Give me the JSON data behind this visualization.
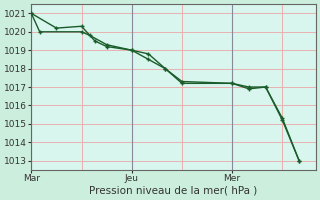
{
  "xlabel": "Pression niveau de la mer( hPa )",
  "bg_color": "#cceedd",
  "plot_bg_color": "#d8f5ee",
  "grid_color": "#e8b0b0",
  "line_color": "#1a5c2a",
  "yticks": [
    1013,
    1014,
    1015,
    1016,
    1017,
    1018,
    1019,
    1020,
    1021
  ],
  "ylim": [
    1012.5,
    1021.5
  ],
  "xtick_labels": [
    "Mar",
    "",
    "Jeu",
    "",
    "Mer",
    ""
  ],
  "xtick_positions": [
    0,
    3,
    6,
    9,
    12,
    15
  ],
  "xlim": [
    0,
    17
  ],
  "line1_x": [
    0,
    0.5,
    3,
    3.5,
    4.5,
    6,
    7,
    8,
    9,
    12,
    13,
    14,
    15,
    16
  ],
  "line1_y": [
    1021.0,
    1020.0,
    1020.0,
    1019.8,
    1019.3,
    1019.0,
    1018.8,
    1018.0,
    1017.2,
    1017.2,
    1017.0,
    1017.0,
    1015.3,
    1013.0
  ],
  "line2_x": [
    0,
    1.5,
    3,
    3.8,
    4.5,
    6,
    7,
    8,
    9,
    12,
    13,
    14,
    15,
    16
  ],
  "line2_y": [
    1021.0,
    1020.2,
    1020.3,
    1019.5,
    1019.2,
    1019.0,
    1018.5,
    1018.0,
    1017.3,
    1017.2,
    1016.9,
    1017.0,
    1015.2,
    1013.0
  ],
  "vline_x": [
    0,
    6,
    12
  ],
  "vline_color": "#888899",
  "marker_size": 2.5,
  "line_width": 1.0,
  "tick_fontsize": 6.5,
  "xlabel_fontsize": 7.5
}
